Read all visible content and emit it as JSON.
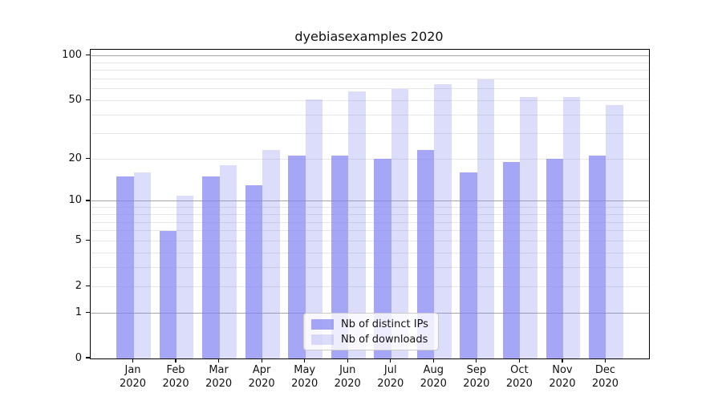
{
  "chart_data": {
    "type": "bar",
    "title": "dyebiasexamples 2020",
    "categories": [
      "Jan",
      "Feb",
      "Mar",
      "Apr",
      "May",
      "Jun",
      "Jul",
      "Aug",
      "Sep",
      "Oct",
      "Nov",
      "Dec"
    ],
    "year_label": "2020",
    "series": [
      {
        "key": "distinct-ips",
        "name": "Nb of distinct IPs",
        "color": "rgba(128,128,242,0.70)",
        "values": [
          15,
          6,
          15,
          13,
          21,
          21,
          20,
          23,
          16,
          19,
          20,
          21
        ]
      },
      {
        "key": "downloads",
        "name": "Nb of downloads",
        "color": "rgba(128,128,242,0.28)",
        "values": [
          16,
          11,
          18,
          23,
          51,
          58,
          60,
          65,
          70,
          53,
          53,
          47
        ]
      }
    ],
    "xlabel": "",
    "ylabel": "",
    "yscale": "log10(value+1)",
    "ylim": [
      0,
      110
    ],
    "ytick_labels": [
      0,
      1,
      2,
      5,
      10,
      20,
      50,
      100
    ],
    "major_gridlines": [
      1,
      10,
      100
    ],
    "minor_gridlines": [
      2,
      3,
      4,
      5,
      6,
      7,
      8,
      9,
      20,
      30,
      40,
      50,
      60,
      70,
      80,
      90
    ],
    "grid": true,
    "legend_position": "lower center",
    "bar_width_fraction": 0.4
  },
  "colors": {
    "background": "#ffffff",
    "spine": "#000000",
    "text": "#111111",
    "grid_major": "#a5a5a5",
    "grid_minor": "#e7e7e7",
    "bar_dark_rendered": "#a6a6f5",
    "bar_light_rendered": "#dbdbfa",
    "legend_border": "#cbcbcb"
  }
}
